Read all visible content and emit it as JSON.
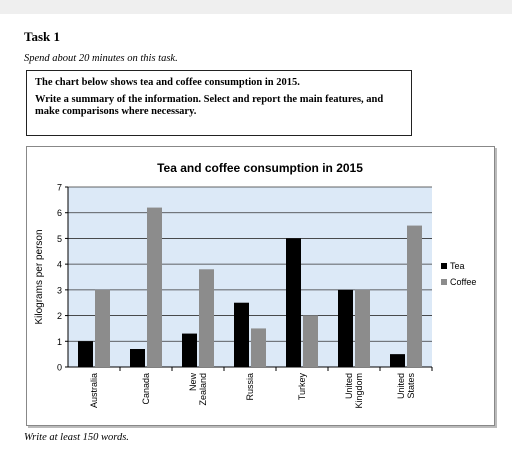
{
  "task": {
    "title": "Task 1",
    "instruction": "Spend about 20 minutes on this task.",
    "prompt_line1": "The chart below shows tea and coffee consumption in 2015.",
    "prompt_line2": "Write a summary of the information. Select and report the main features, and make comparisons where necessary.",
    "footer": "Write at least 150 words."
  },
  "chart_data": {
    "type": "bar",
    "title": "Tea and coffee consumption in 2015",
    "ylabel": "Kilograms per person",
    "xlabel": "",
    "ylim": [
      0,
      7
    ],
    "yticks": [
      "0",
      "1",
      "2",
      "3",
      "4",
      "5",
      "6",
      "7"
    ],
    "categories": [
      [
        "Australia"
      ],
      [
        "Canada"
      ],
      [
        "New",
        "Zealand"
      ],
      [
        "Russia"
      ],
      [
        "Turkey"
      ],
      [
        "United",
        "Kingdom"
      ],
      [
        "United",
        "States"
      ]
    ],
    "series": [
      {
        "name": "Tea",
        "color": "#000000",
        "values": [
          1.0,
          0.7,
          1.3,
          2.5,
          5.0,
          3.0,
          0.5
        ]
      },
      {
        "name": "Coffee",
        "color": "#8c8c8c",
        "values": [
          3.0,
          6.2,
          3.8,
          1.5,
          2.0,
          3.0,
          5.5
        ]
      }
    ],
    "grid": true,
    "legend_position": "right"
  }
}
